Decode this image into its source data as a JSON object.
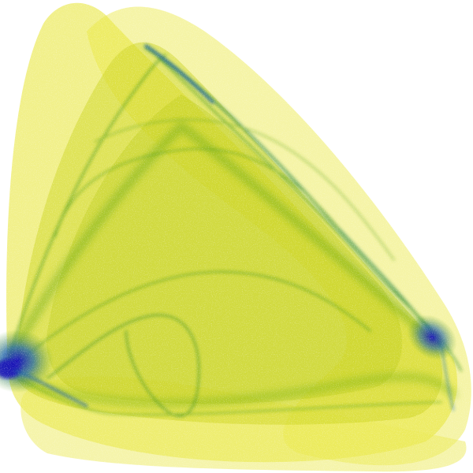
{
  "image": {
    "subject": "strange-attractor-density-render",
    "colors": {
      "background": "#ffffff",
      "sparse": "#f2f07a",
      "light": "#e3e31d",
      "medium": "#a8c813",
      "green": "#4e9a14",
      "dense": "#1c64a8",
      "core": "#1a12b8"
    }
  }
}
